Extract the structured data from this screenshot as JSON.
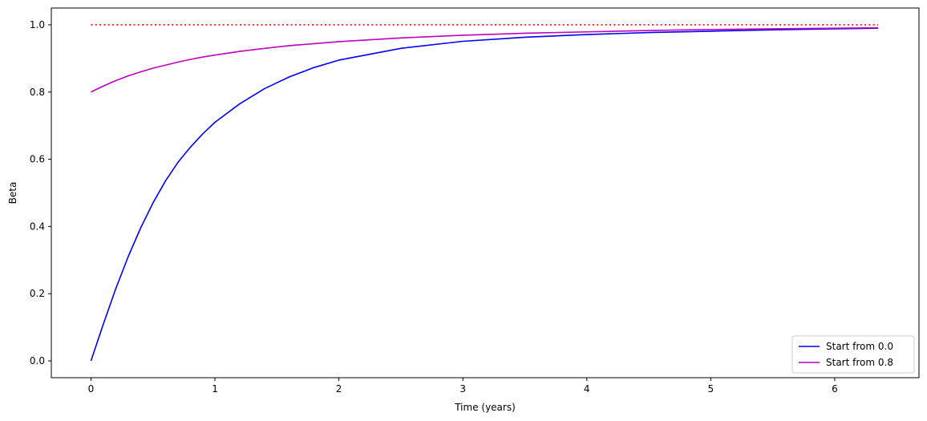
{
  "chart_data": {
    "type": "line",
    "xlabel": "Time (years)",
    "ylabel": "Beta",
    "xlim": [
      -0.32,
      6.68
    ],
    "ylim": [
      -0.05,
      1.05
    ],
    "xticks": [
      0,
      1,
      2,
      3,
      4,
      5,
      6
    ],
    "xtick_labels": [
      "0",
      "1",
      "2",
      "3",
      "4",
      "5",
      "6"
    ],
    "yticks": [
      0.0,
      0.2,
      0.4,
      0.6,
      0.8,
      1.0
    ],
    "ytick_labels": [
      "0.0",
      "0.2",
      "0.4",
      "0.6",
      "0.8",
      "1.0"
    ],
    "grid": false,
    "legend_position": "bottom-right",
    "series": [
      {
        "name": "Start from 0.0",
        "color": "#0000ff",
        "style": "solid",
        "x": [
          0,
          0.1,
          0.2,
          0.3,
          0.4,
          0.5,
          0.6,
          0.7,
          0.8,
          0.9,
          1.0,
          1.2,
          1.4,
          1.6,
          1.8,
          2.0,
          2.5,
          3.0,
          3.5,
          4.0,
          4.5,
          5.0,
          5.5,
          6.0,
          6.35
        ],
        "y": [
          0.0,
          0.11,
          0.215,
          0.31,
          0.395,
          0.47,
          0.535,
          0.59,
          0.635,
          0.675,
          0.71,
          0.765,
          0.81,
          0.845,
          0.873,
          0.895,
          0.93,
          0.951,
          0.963,
          0.971,
          0.977,
          0.981,
          0.985,
          0.988,
          0.99
        ]
      },
      {
        "name": "Start from 0.8",
        "color": "#bf00bf",
        "style": "solid",
        "x": [
          0,
          0.1,
          0.2,
          0.3,
          0.4,
          0.5,
          0.6,
          0.7,
          0.8,
          0.9,
          1.0,
          1.2,
          1.4,
          1.6,
          1.8,
          2.0,
          2.5,
          3.0,
          3.5,
          4.0,
          4.5,
          5.0,
          5.5,
          6.0,
          6.35
        ],
        "y": [
          0.8,
          0.818,
          0.834,
          0.848,
          0.86,
          0.871,
          0.88,
          0.889,
          0.897,
          0.904,
          0.91,
          0.921,
          0.93,
          0.938,
          0.944,
          0.95,
          0.961,
          0.969,
          0.975,
          0.979,
          0.983,
          0.986,
          0.988,
          0.99,
          0.991
        ]
      },
      {
        "color": "#ff0000",
        "style": "dotted",
        "x": [
          0,
          6.35
        ],
        "y": [
          1.0,
          1.0
        ]
      }
    ]
  }
}
